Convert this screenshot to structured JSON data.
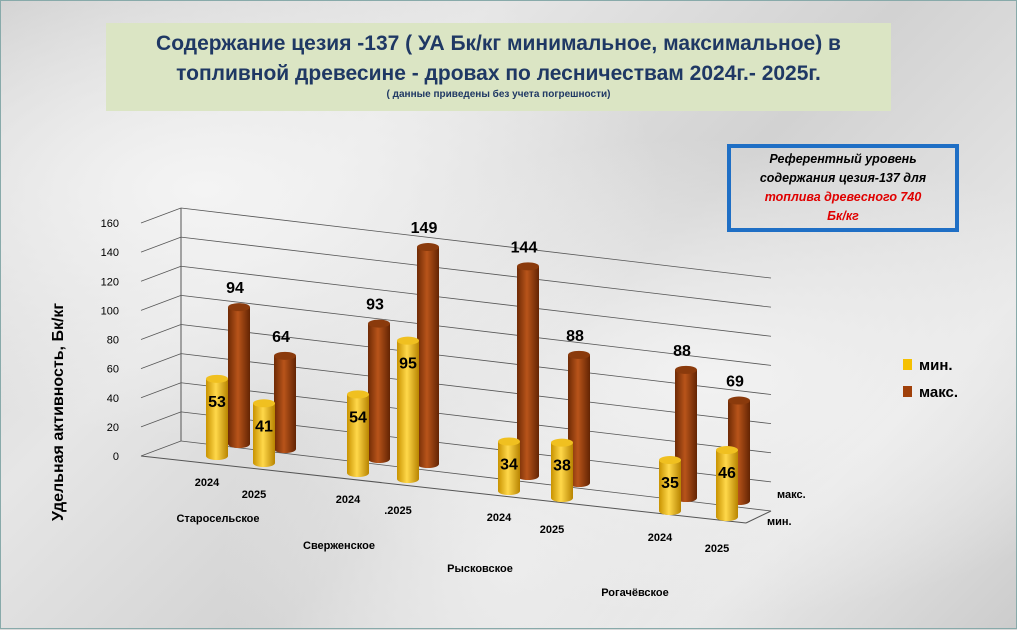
{
  "title": {
    "line1": "Содержание цезия -137 ( УА Бк/кг минимальное, максимальное) в",
    "line2": "топливной древесине - дровах по лесничествам  2024г.- 2025г.",
    "note": "( данные приведены без учета погрешности)"
  },
  "reference": {
    "line1": "Референтный уровень",
    "line2": "содержания  цезия-137 для",
    "line3": "топлива древесного 740",
    "line4": "Бк/кг"
  },
  "chart_data": {
    "type": "bar",
    "subtype": "3d-cylinder",
    "ylabel": "Удельная активность,  Бк/кг",
    "ylim": [
      0,
      160
    ],
    "yticks": [
      "0",
      "20",
      "40",
      "60",
      "80",
      "100",
      "120",
      "140",
      "160"
    ],
    "grid": true,
    "legend_position": "right",
    "groups": [
      "Старосельское",
      "Сверженское",
      "Рысковское",
      "Рогачёвское"
    ],
    "categories": [
      "2024",
      "2025",
      "2024",
      ".2025",
      "2024",
      "2025",
      "2024",
      "2025"
    ],
    "depth_labels": [
      "макс.",
      "мин."
    ],
    "series": [
      {
        "name": "мин.",
        "color": "#f5c000",
        "values": [
          53,
          41,
          54,
          95,
          34,
          38,
          35,
          46
        ]
      },
      {
        "name": "макс.",
        "color": "#a0400a",
        "values": [
          94,
          64,
          93,
          149,
          144,
          88,
          88,
          69
        ]
      }
    ]
  }
}
